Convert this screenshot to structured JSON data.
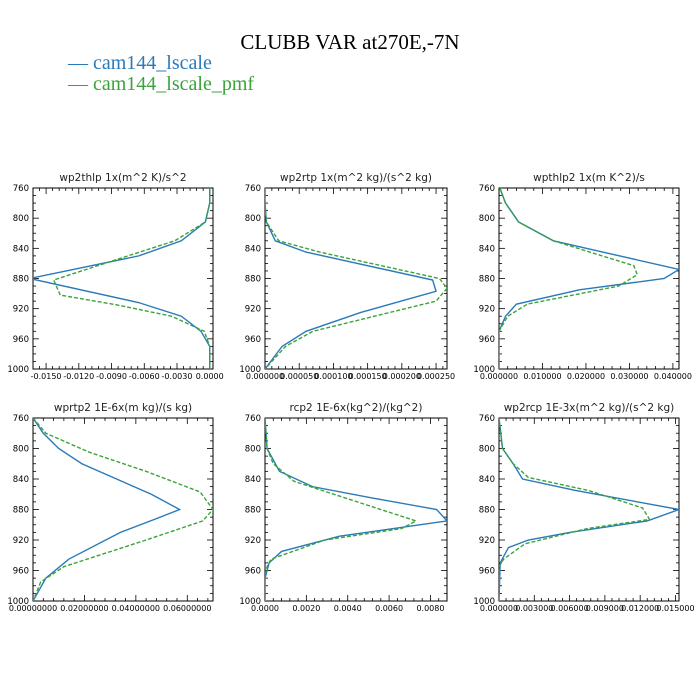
{
  "figure": {
    "title": "CLUBB VAR at270E,-7N",
    "legend": [
      {
        "name": "cam144_lscale",
        "color": "#2a7ab9"
      },
      {
        "name": "cam144_lscale_pmf",
        "color": "#3aa33a"
      }
    ]
  },
  "chart_data": [
    {
      "type": "line",
      "title": "wp2thlp   1x(m^2 K)/s^2",
      "xlim": [
        -0.0162,
        0.0003
      ],
      "ylim": [
        760,
        1000
      ],
      "y_inverted": true,
      "yticks": [
        760,
        800,
        840,
        880,
        920,
        960,
        1000
      ],
      "xticks": [
        -0.015,
        -0.012,
        -0.009,
        -0.006,
        -0.003,
        0.0
      ],
      "xtick_labels": [
        "-0.0150",
        "-0.0120",
        "-0.0090",
        "-0.0060",
        "-0.0030",
        "0.0000"
      ],
      "series": [
        {
          "name": "cam144_lscale",
          "x": [
            0.0,
            0.0,
            -0.0004,
            -0.0026,
            -0.0065,
            -0.0165,
            -0.0065,
            -0.0026,
            -0.0008,
            0.0,
            0.0
          ],
          "y": [
            760,
            780,
            805,
            830,
            850,
            880,
            912,
            930,
            950,
            970,
            1000
          ]
        },
        {
          "name": "cam144_lscale_pmf",
          "x": [
            0.0,
            0.0,
            -0.0004,
            -0.0032,
            -0.0075,
            -0.0143,
            -0.0137,
            -0.0085,
            -0.0035,
            -0.0005,
            0.0,
            0.0
          ],
          "y": [
            760,
            780,
            805,
            830,
            850,
            882,
            902,
            915,
            930,
            950,
            970,
            1000
          ]
        }
      ]
    },
    {
      "type": "line",
      "title": "wp2rtp   1x(m^2 kg)/(s^2 kg)",
      "xlim": [
        0.0,
        0.000266
      ],
      "ylim": [
        760,
        1000
      ],
      "y_inverted": true,
      "yticks": [
        760,
        800,
        840,
        880,
        920,
        960,
        1000
      ],
      "xticks": [
        0.0,
        5e-05,
        0.0001,
        0.00015,
        0.0002,
        0.00025
      ],
      "xtick_labels": [
        "0.000000",
        "0.000050",
        "0.000100",
        "0.000150",
        "0.000200",
        "0.000250"
      ],
      "series": [
        {
          "name": "cam144_lscale",
          "x": [
            0.0,
            0.0,
            2e-06,
            1.5e-05,
            6e-05,
            0.000245,
            0.00025,
            0.00014,
            6e-05,
            2.5e-05,
            0.0
          ],
          "y": [
            760,
            780,
            805,
            830,
            845,
            882,
            897,
            925,
            950,
            970,
            1000
          ]
        },
        {
          "name": "cam144_lscale_pmf",
          "x": [
            0.0,
            0.0,
            2e-06,
            2e-05,
            8e-05,
            0.000255,
            0.000266,
            0.00025,
            0.00016,
            7e-05,
            3e-05,
            0.0
          ],
          "y": [
            760,
            780,
            805,
            830,
            845,
            880,
            893,
            910,
            930,
            950,
            970,
            1000
          ]
        }
      ]
    },
    {
      "type": "line",
      "title": "wpthlp2   1x(m K^2)/s",
      "xlim": [
        0.0,
        0.0414
      ],
      "ylim": [
        760,
        1000
      ],
      "y_inverted": true,
      "yticks": [
        760,
        800,
        840,
        880,
        920,
        960,
        1000
      ],
      "xticks": [
        0.0,
        0.01,
        0.02,
        0.03,
        0.04
      ],
      "xtick_labels": [
        "0.000000",
        "0.010000",
        "0.020000",
        "0.030000",
        "0.040000"
      ],
      "series": [
        {
          "name": "cam144_lscale",
          "x": [
            0.0002,
            0.0015,
            0.0045,
            0.0125,
            0.0414,
            0.038,
            0.0185,
            0.004,
            0.0015,
            0.0,
            0.0
          ],
          "y": [
            760,
            780,
            805,
            830,
            868,
            880,
            895,
            914,
            930,
            950,
            1000
          ]
        },
        {
          "name": "cam144_lscale_pmf",
          "x": [
            0.0002,
            0.0015,
            0.0045,
            0.0125,
            0.031,
            0.0318,
            0.0275,
            0.0065,
            0.002,
            0.0,
            0.0
          ],
          "y": [
            760,
            780,
            805,
            830,
            863,
            875,
            890,
            914,
            930,
            950,
            1000
          ]
        }
      ]
    },
    {
      "type": "line",
      "title": "wprtp2   1E-6x(m kg)/(s kg)",
      "xlim": [
        0.0,
        0.07
      ],
      "ylim": [
        760,
        1000
      ],
      "y_inverted": true,
      "yticks": [
        760,
        800,
        840,
        880,
        920,
        960,
        1000
      ],
      "xticks": [
        0.0,
        0.02,
        0.04,
        0.06
      ],
      "xtick_labels": [
        "0.00000000",
        "0.02000000",
        "0.04000000",
        "0.06000000"
      ],
      "series": [
        {
          "name": "cam144_lscale",
          "x": [
            0.0,
            0.004,
            0.01,
            0.019,
            0.046,
            0.057,
            0.048,
            0.034,
            0.014,
            0.005,
            0.0
          ],
          "y": [
            760,
            780,
            800,
            820,
            860,
            880,
            892,
            910,
            945,
            970,
            1000
          ]
        },
        {
          "name": "cam144_lscale_pmf",
          "x": [
            0.0,
            0.005,
            0.022,
            0.044,
            0.065,
            0.07,
            0.066,
            0.044,
            0.012,
            0.003,
            0.0
          ],
          "y": [
            760,
            780,
            805,
            830,
            857,
            880,
            895,
            920,
            955,
            975,
            1000
          ]
        }
      ]
    },
    {
      "type": "line",
      "title": "rcp2   1E-6x(kg^2)/(kg^2)",
      "xlim": [
        0.0,
        0.0088
      ],
      "ylim": [
        760,
        1000
      ],
      "y_inverted": true,
      "yticks": [
        760,
        800,
        840,
        880,
        920,
        960,
        1000
      ],
      "xticks": [
        0.0,
        0.002,
        0.004,
        0.006,
        0.008
      ],
      "xtick_labels": [
        "0.0000",
        "0.0020",
        "0.0040",
        "0.0060",
        "0.0080"
      ],
      "series": [
        {
          "name": "cam144_lscale",
          "x": [
            0.0,
            0.0001,
            0.0007,
            0.0023,
            0.0052,
            0.0083,
            0.0088,
            0.0036,
            0.0008,
            0.0002,
            0.0,
            0.0
          ],
          "y": [
            760,
            800,
            830,
            850,
            865,
            880,
            895,
            915,
            935,
            950,
            970,
            1000
          ]
        },
        {
          "name": "cam144_lscale_pmf",
          "x": [
            0.0,
            0.0001,
            0.0004,
            0.0014,
            0.0073,
            0.0066,
            0.0029,
            0.0003,
            0.0001,
            0.0,
            0.0
          ],
          "y": [
            760,
            800,
            820,
            843,
            895,
            905,
            920,
            945,
            955,
            965,
            1000
          ]
        }
      ]
    },
    {
      "type": "line",
      "title": "wp2rcp   1E-3x(m^2 kg)/(s^2 kg)",
      "xlim": [
        0.0,
        0.0153
      ],
      "ylim": [
        760,
        1000
      ],
      "y_inverted": true,
      "yticks": [
        760,
        800,
        840,
        880,
        920,
        960,
        1000
      ],
      "xticks": [
        0.0,
        0.003,
        0.006,
        0.009,
        0.012,
        0.015
      ],
      "xtick_labels": [
        "0.000000",
        "0.003000",
        "0.006000",
        "0.009000",
        "0.012000",
        "0.015000"
      ],
      "series": [
        {
          "name": "cam144_lscale",
          "x": [
            0.0,
            0.0003,
            0.0012,
            0.002,
            0.0065,
            0.0153,
            0.0126,
            0.006,
            0.0025,
            0.0008,
            0.0001,
            0.0
          ],
          "y": [
            760,
            800,
            820,
            840,
            855,
            880,
            895,
            910,
            920,
            930,
            950,
            1000
          ]
        },
        {
          "name": "cam144_lscale_pmf",
          "x": [
            0.0,
            0.0003,
            0.0012,
            0.0025,
            0.0076,
            0.0122,
            0.0128,
            0.0075,
            0.0022,
            0.0004,
            0.0,
            0.0
          ],
          "y": [
            760,
            800,
            820,
            838,
            855,
            878,
            893,
            905,
            925,
            945,
            955,
            1000
          ]
        }
      ]
    }
  ]
}
